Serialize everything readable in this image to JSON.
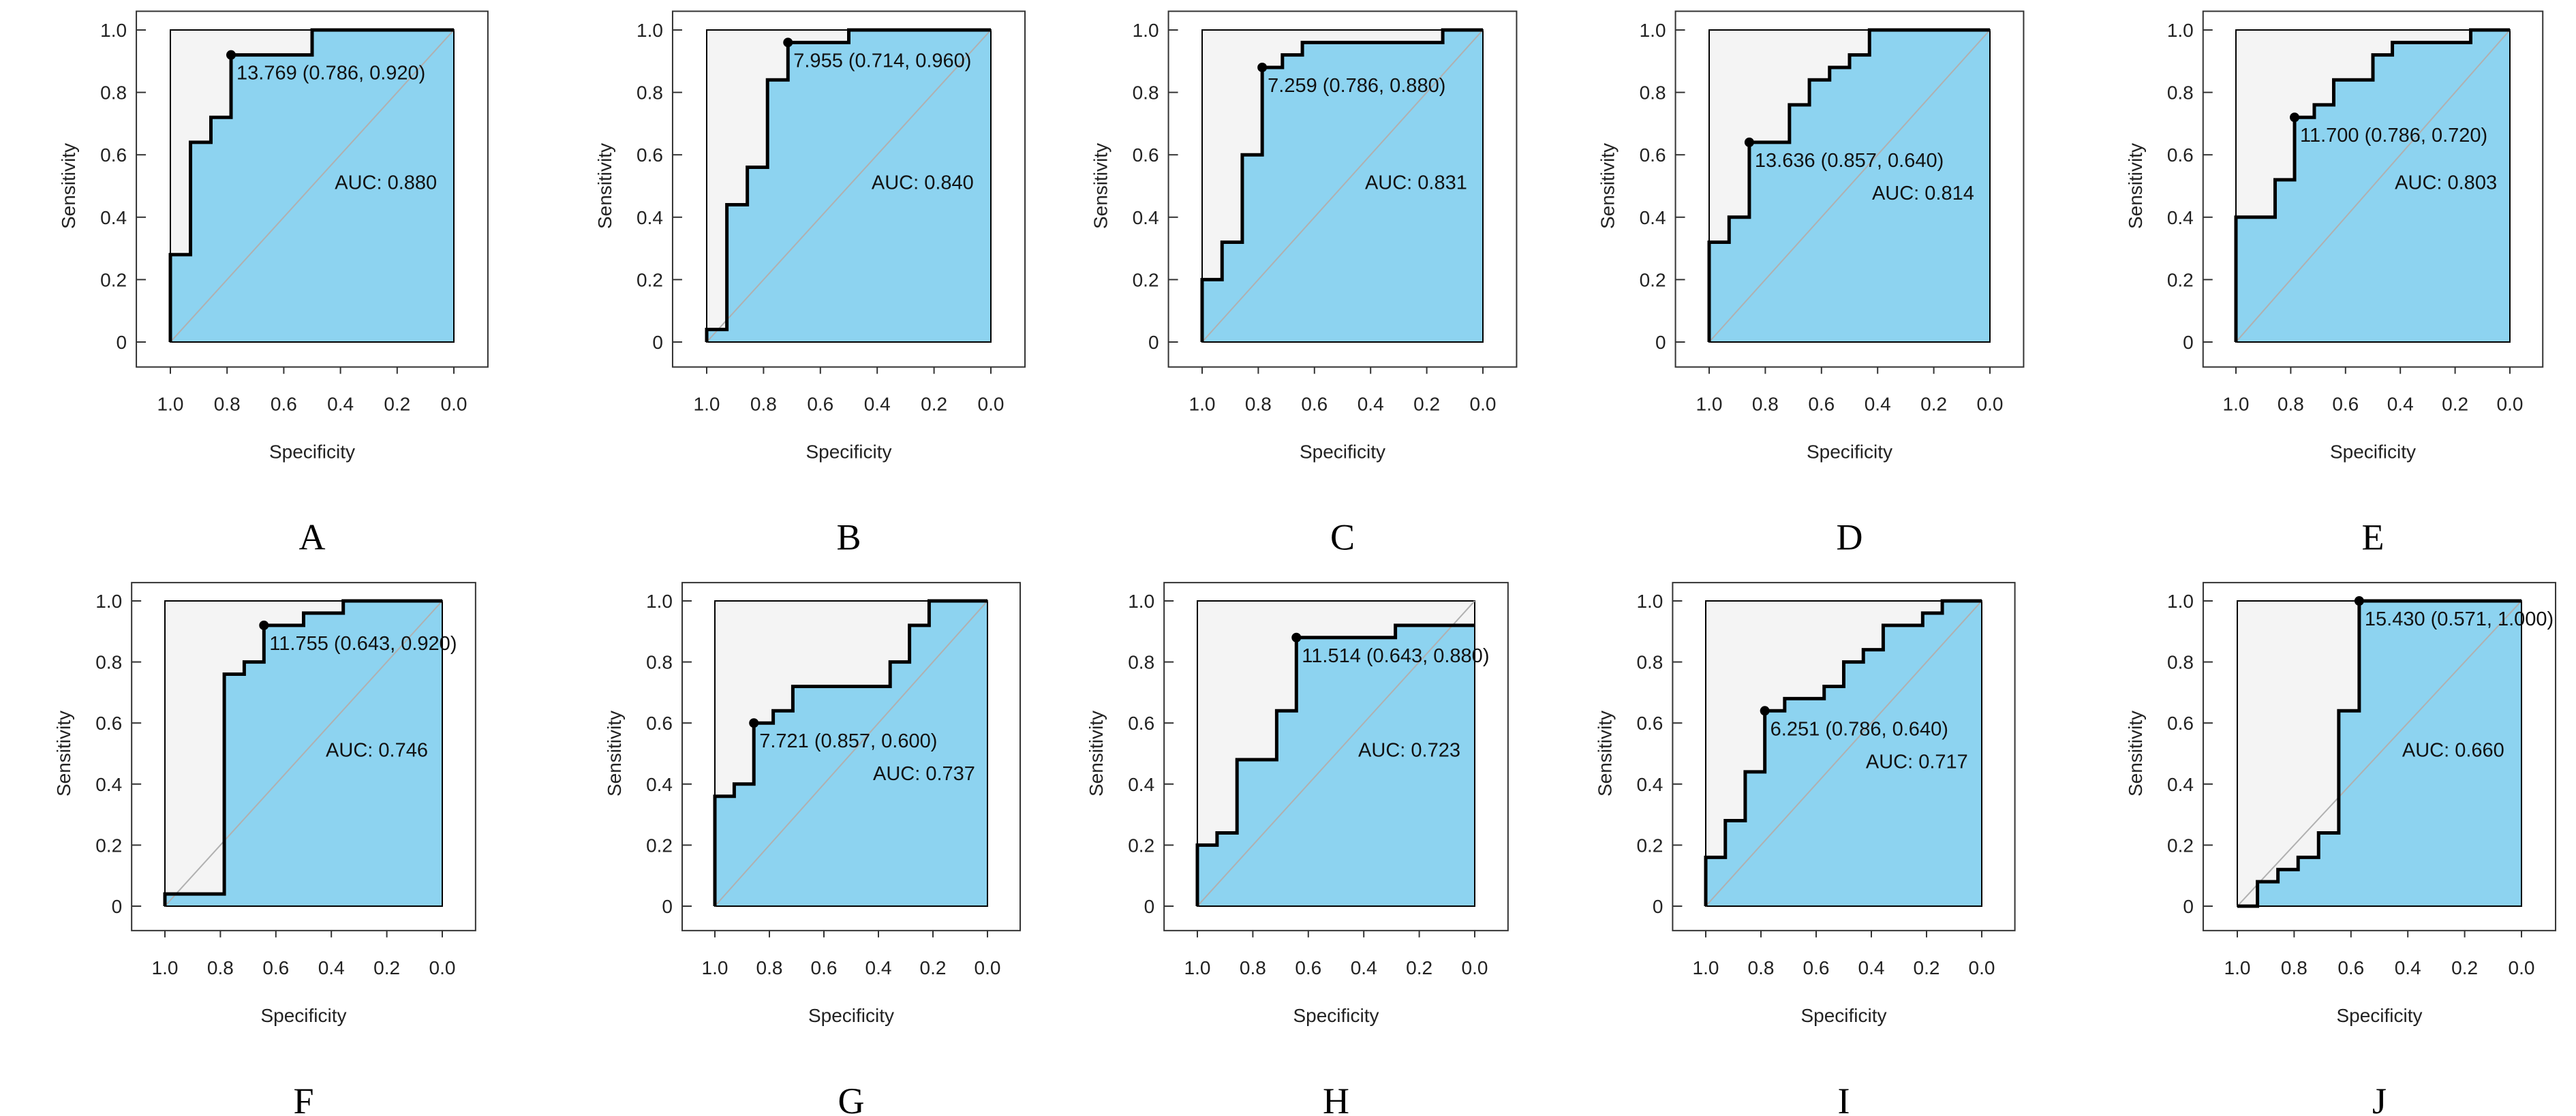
{
  "colors": {
    "fill": "#8DD3F0",
    "background_region": "#F4F4F4",
    "curve": "#000000",
    "diagonal": "#B0B0B0"
  },
  "chart_data": [
    {
      "type": "line",
      "panel": "A",
      "xlabel": "Specificity",
      "ylabel": "Sensitivity",
      "xlim": [
        1.0,
        0.0
      ],
      "ylim": [
        0,
        1.0
      ],
      "xticks": [
        "1.0",
        "0.8",
        "0.6",
        "0.4",
        "0.2",
        "0.0"
      ],
      "yticks": [
        "0",
        "0.2",
        "0.4",
        "0.6",
        "0.8",
        "1.0"
      ],
      "auc": "AUC: 0.880",
      "threshold_label": "13.769 (0.786, 0.920)",
      "best_point": [
        0.786,
        0.92
      ],
      "points": [
        [
          1,
          0
        ],
        [
          1,
          0.28
        ],
        [
          0.929,
          0.28
        ],
        [
          0.929,
          0.64
        ],
        [
          0.857,
          0.64
        ],
        [
          0.857,
          0.72
        ],
        [
          0.786,
          0.72
        ],
        [
          0.786,
          0.92
        ],
        [
          0.5,
          0.92
        ],
        [
          0.5,
          1
        ],
        [
          0,
          1
        ]
      ]
    },
    {
      "type": "line",
      "panel": "B",
      "xlabel": "Specificity",
      "ylabel": "Sensitivity",
      "xlim": [
        1.0,
        0.0
      ],
      "ylim": [
        0,
        1.0
      ],
      "xticks": [
        "1.0",
        "0.8",
        "0.6",
        "0.4",
        "0.2",
        "0.0"
      ],
      "yticks": [
        "0",
        "0.2",
        "0.4",
        "0.6",
        "0.8",
        "1.0"
      ],
      "auc": "AUC: 0.840",
      "threshold_label": "7.955 (0.714, 0.960)",
      "best_point": [
        0.714,
        0.96
      ],
      "points": [
        [
          1,
          0
        ],
        [
          1,
          0.04
        ],
        [
          0.929,
          0.04
        ],
        [
          0.929,
          0.44
        ],
        [
          0.857,
          0.44
        ],
        [
          0.857,
          0.56
        ],
        [
          0.786,
          0.56
        ],
        [
          0.786,
          0.84
        ],
        [
          0.714,
          0.84
        ],
        [
          0.714,
          0.96
        ],
        [
          0.5,
          0.96
        ],
        [
          0.5,
          1
        ],
        [
          0,
          1
        ]
      ]
    },
    {
      "type": "line",
      "panel": "C",
      "xlabel": "Specificity",
      "ylabel": "Sensitivity",
      "xlim": [
        1.0,
        0.0
      ],
      "ylim": [
        0,
        1.0
      ],
      "xticks": [
        "1.0",
        "0.8",
        "0.6",
        "0.4",
        "0.2",
        "0.0"
      ],
      "yticks": [
        "0",
        "0.2",
        "0.4",
        "0.6",
        "0.8",
        "1.0"
      ],
      "auc": "AUC: 0.831",
      "threshold_label": "7.259 (0.786, 0.880)",
      "best_point": [
        0.786,
        0.88
      ],
      "points": [
        [
          1,
          0
        ],
        [
          1,
          0.2
        ],
        [
          0.929,
          0.2
        ],
        [
          0.929,
          0.32
        ],
        [
          0.857,
          0.32
        ],
        [
          0.857,
          0.6
        ],
        [
          0.786,
          0.6
        ],
        [
          0.786,
          0.88
        ],
        [
          0.714,
          0.88
        ],
        [
          0.714,
          0.92
        ],
        [
          0.643,
          0.92
        ],
        [
          0.643,
          0.96
        ],
        [
          0.143,
          0.96
        ],
        [
          0.143,
          1
        ],
        [
          0,
          1
        ]
      ]
    },
    {
      "type": "line",
      "panel": "D",
      "xlabel": "Specificity",
      "ylabel": "Sensitivity",
      "xlim": [
        1.0,
        0.0
      ],
      "ylim": [
        0,
        1.0
      ],
      "xticks": [
        "1.0",
        "0.8",
        "0.6",
        "0.4",
        "0.2",
        "0.0"
      ],
      "yticks": [
        "0",
        "0.2",
        "0.4",
        "0.6",
        "0.8",
        "1.0"
      ],
      "auc": "AUC: 0.814",
      "threshold_label": "13.636 (0.857, 0.640)",
      "best_point": [
        0.857,
        0.64
      ],
      "points": [
        [
          1,
          0
        ],
        [
          1,
          0.32
        ],
        [
          0.929,
          0.32
        ],
        [
          0.929,
          0.4
        ],
        [
          0.857,
          0.4
        ],
        [
          0.857,
          0.64
        ],
        [
          0.714,
          0.64
        ],
        [
          0.714,
          0.76
        ],
        [
          0.643,
          0.76
        ],
        [
          0.643,
          0.84
        ],
        [
          0.571,
          0.84
        ],
        [
          0.571,
          0.88
        ],
        [
          0.5,
          0.88
        ],
        [
          0.5,
          0.92
        ],
        [
          0.429,
          0.92
        ],
        [
          0.429,
          1
        ],
        [
          0,
          1
        ]
      ]
    },
    {
      "type": "line",
      "panel": "E",
      "xlabel": "Specificity",
      "ylabel": "Sensitivity",
      "xlim": [
        1.0,
        0.0
      ],
      "ylim": [
        0,
        1.0
      ],
      "xticks": [
        "1.0",
        "0.8",
        "0.6",
        "0.4",
        "0.2",
        "0.0"
      ],
      "yticks": [
        "0",
        "0.2",
        "0.4",
        "0.6",
        "0.8",
        "1.0"
      ],
      "auc": "AUC: 0.803",
      "threshold_label": "11.700 (0.786, 0.720)",
      "best_point": [
        0.786,
        0.72
      ],
      "points": [
        [
          1,
          0
        ],
        [
          1,
          0.4
        ],
        [
          0.857,
          0.4
        ],
        [
          0.857,
          0.52
        ],
        [
          0.786,
          0.52
        ],
        [
          0.786,
          0.72
        ],
        [
          0.714,
          0.72
        ],
        [
          0.714,
          0.76
        ],
        [
          0.643,
          0.76
        ],
        [
          0.643,
          0.84
        ],
        [
          0.5,
          0.84
        ],
        [
          0.5,
          0.92
        ],
        [
          0.429,
          0.92
        ],
        [
          0.429,
          0.96
        ],
        [
          0.143,
          0.96
        ],
        [
          0.143,
          1
        ],
        [
          0,
          1
        ]
      ]
    },
    {
      "type": "line",
      "panel": "F",
      "xlabel": "Specificity",
      "ylabel": "Sensitivity",
      "xlim": [
        1.0,
        0.0
      ],
      "ylim": [
        0,
        1.0
      ],
      "xticks": [
        "1.0",
        "0.8",
        "0.6",
        "0.4",
        "0.2",
        "0.0"
      ],
      "yticks": [
        "0",
        "0.2",
        "0.4",
        "0.6",
        "0.8",
        "1.0"
      ],
      "auc": "AUC: 0.746",
      "threshold_label": "11.755 (0.643, 0.920)",
      "best_point": [
        0.643,
        0.92
      ],
      "points": [
        [
          1,
          0
        ],
        [
          1,
          0.04
        ],
        [
          0.786,
          0.04
        ],
        [
          0.786,
          0.76
        ],
        [
          0.714,
          0.76
        ],
        [
          0.714,
          0.8
        ],
        [
          0.643,
          0.8
        ],
        [
          0.643,
          0.92
        ],
        [
          0.5,
          0.92
        ],
        [
          0.5,
          0.96
        ],
        [
          0.357,
          0.96
        ],
        [
          0.357,
          1
        ],
        [
          0,
          1
        ]
      ]
    },
    {
      "type": "line",
      "panel": "G",
      "xlabel": "Specificity",
      "ylabel": "Sensitivity",
      "xlim": [
        1.0,
        0.0
      ],
      "ylim": [
        0,
        1.0
      ],
      "xticks": [
        "1.0",
        "0.8",
        "0.6",
        "0.4",
        "0.2",
        "0.0"
      ],
      "yticks": [
        "0",
        "0.2",
        "0.4",
        "0.6",
        "0.8",
        "1.0"
      ],
      "auc": "AUC: 0.737",
      "threshold_label": "7.721 (0.857, 0.600)",
      "best_point": [
        0.857,
        0.6
      ],
      "points": [
        [
          1,
          0
        ],
        [
          1,
          0.36
        ],
        [
          0.929,
          0.36
        ],
        [
          0.929,
          0.4
        ],
        [
          0.857,
          0.4
        ],
        [
          0.857,
          0.6
        ],
        [
          0.786,
          0.6
        ],
        [
          0.786,
          0.64
        ],
        [
          0.714,
          0.64
        ],
        [
          0.714,
          0.72
        ],
        [
          0.357,
          0.72
        ],
        [
          0.357,
          0.8
        ],
        [
          0.286,
          0.8
        ],
        [
          0.286,
          0.92
        ],
        [
          0.214,
          0.92
        ],
        [
          0.214,
          1
        ],
        [
          0,
          1
        ]
      ]
    },
    {
      "type": "line",
      "panel": "H",
      "xlabel": "Specificity",
      "ylabel": "Sensitivity",
      "xlim": [
        1.0,
        0.0
      ],
      "ylim": [
        0,
        1.0
      ],
      "xticks": [
        "1.0",
        "0.8",
        "0.6",
        "0.4",
        "0.2",
        "0.0"
      ],
      "yticks": [
        "0",
        "0.2",
        "0.4",
        "0.6",
        "0.8",
        "1.0"
      ],
      "auc": "AUC: 0.723",
      "threshold_label": "11.514 (0.643, 0.880)",
      "best_point": [
        0.643,
        0.88
      ],
      "points": [
        [
          1,
          0
        ],
        [
          1,
          0.2
        ],
        [
          0.929,
          0.2
        ],
        [
          0.929,
          0.24
        ],
        [
          0.857,
          0.24
        ],
        [
          0.857,
          0.48
        ],
        [
          0.714,
          0.48
        ],
        [
          0.714,
          0.64
        ],
        [
          0.643,
          0.64
        ],
        [
          0.643,
          0.88
        ],
        [
          0.286,
          0.88
        ],
        [
          0.286,
          0.92
        ],
        [
          0,
          0.92
        ]
      ]
    },
    {
      "type": "line",
      "panel": "I",
      "xlabel": "Specificity",
      "ylabel": "Sensitivity",
      "xlim": [
        1.0,
        0.0
      ],
      "ylim": [
        0,
        1.0
      ],
      "xticks": [
        "1.0",
        "0.8",
        "0.6",
        "0.4",
        "0.2",
        "0.0"
      ],
      "yticks": [
        "0",
        "0.2",
        "0.4",
        "0.6",
        "0.8",
        "1.0"
      ],
      "auc": "AUC: 0.717",
      "threshold_label": "6.251 (0.786, 0.640)",
      "best_point": [
        0.786,
        0.64
      ],
      "points": [
        [
          1,
          0
        ],
        [
          1,
          0.16
        ],
        [
          0.929,
          0.16
        ],
        [
          0.929,
          0.28
        ],
        [
          0.857,
          0.28
        ],
        [
          0.857,
          0.44
        ],
        [
          0.786,
          0.44
        ],
        [
          0.786,
          0.64
        ],
        [
          0.714,
          0.64
        ],
        [
          0.714,
          0.68
        ],
        [
          0.571,
          0.68
        ],
        [
          0.571,
          0.72
        ],
        [
          0.5,
          0.72
        ],
        [
          0.5,
          0.8
        ],
        [
          0.429,
          0.8
        ],
        [
          0.429,
          0.84
        ],
        [
          0.357,
          0.84
        ],
        [
          0.357,
          0.92
        ],
        [
          0.214,
          0.92
        ],
        [
          0.214,
          0.96
        ],
        [
          0.143,
          0.96
        ],
        [
          0.143,
          1
        ],
        [
          0,
          1
        ]
      ]
    },
    {
      "type": "line",
      "panel": "J",
      "xlabel": "Specificity",
      "ylabel": "Sensitivity",
      "xlim": [
        1.0,
        0.0
      ],
      "ylim": [
        0,
        1.0
      ],
      "xticks": [
        "1.0",
        "0.8",
        "0.6",
        "0.4",
        "0.2",
        "0.0"
      ],
      "yticks": [
        "0",
        "0.2",
        "0.4",
        "0.6",
        "0.8",
        "1.0"
      ],
      "auc": "AUC: 0.660",
      "threshold_label": "15.430 (0.571, 1.000)",
      "best_point": [
        0.571,
        1.0
      ],
      "points": [
        [
          1,
          0
        ],
        [
          0.929,
          0
        ],
        [
          0.929,
          0.08
        ],
        [
          0.857,
          0.08
        ],
        [
          0.857,
          0.12
        ],
        [
          0.786,
          0.12
        ],
        [
          0.786,
          0.16
        ],
        [
          0.714,
          0.16
        ],
        [
          0.714,
          0.24
        ],
        [
          0.643,
          0.24
        ],
        [
          0.643,
          0.64
        ],
        [
          0.571,
          0.64
        ],
        [
          0.571,
          1
        ],
        [
          0,
          1
        ]
      ]
    }
  ]
}
